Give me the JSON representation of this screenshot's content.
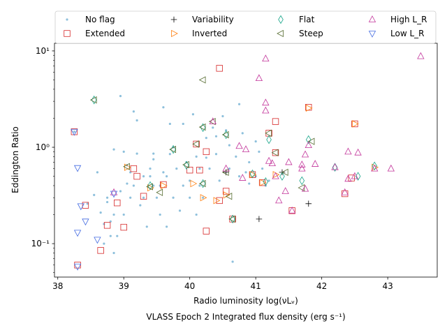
{
  "chart_data": {
    "type": "scatter",
    "xlabel": "Radio luminosity log(νLᵥ)",
    "xlabel_line2": "VLASS Epoch 2 Integrated flux density (erg s⁻¹)",
    "ylabel": "Eddington Ratio",
    "xlim": [
      37.95,
      43.75
    ],
    "ylim": [
      0.045,
      12
    ],
    "yscale": "log",
    "x_ticks": [
      38,
      39,
      40,
      41,
      42,
      43
    ],
    "x_tick_labels": [
      "38",
      "39",
      "40",
      "41",
      "42",
      "43"
    ],
    "y_ticks": [
      0.1,
      1,
      10
    ],
    "y_tick_labels": [
      "10⁻¹",
      "10⁰",
      "10¹"
    ],
    "legend_position": "top",
    "series": [
      {
        "name": "No flag",
        "marker": "dot",
        "color": "#8ec0dc",
        "points": [
          [
            38.25,
            1.45
          ],
          [
            38.45,
            0.26
          ],
          [
            38.6,
            0.55
          ],
          [
            38.65,
            0.21
          ],
          [
            38.7,
            0.16
          ],
          [
            38.7,
            0.1
          ],
          [
            38.75,
            0.27
          ],
          [
            38.8,
            0.17
          ],
          [
            38.8,
            0.12
          ],
          [
            38.85,
            0.08
          ],
          [
            38.85,
            0.2
          ],
          [
            38.9,
            0.12
          ],
          [
            38.85,
            0.95
          ],
          [
            38.95,
            3.4
          ],
          [
            39.0,
            0.9
          ],
          [
            39.05,
            0.65
          ],
          [
            39.1,
            0.55
          ],
          [
            39.1,
            0.3
          ],
          [
            39.15,
            0.4
          ],
          [
            39.15,
            2.35
          ],
          [
            39.2,
            1.9
          ],
          [
            39.25,
            0.25
          ],
          [
            39.3,
            0.3
          ],
          [
            39.3,
            0.5
          ],
          [
            39.35,
            0.15
          ],
          [
            39.4,
            0.5
          ],
          [
            39.4,
            0.6
          ],
          [
            39.45,
            0.75
          ],
          [
            39.45,
            0.4
          ],
          [
            39.5,
            0.3
          ],
          [
            39.55,
            0.2
          ],
          [
            39.6,
            0.55
          ],
          [
            39.6,
            2.6
          ],
          [
            39.65,
            0.15
          ],
          [
            39.7,
            0.85
          ],
          [
            39.7,
            1.75
          ],
          [
            39.75,
            0.3
          ],
          [
            39.8,
            0.6
          ],
          [
            39.85,
            0.22
          ],
          [
            39.9,
            0.4
          ],
          [
            39.9,
            1.75
          ],
          [
            39.95,
            0.7
          ],
          [
            40.0,
            0.45
          ],
          [
            40.0,
            0.3
          ],
          [
            40.05,
            2.2
          ],
          [
            40.1,
            0.2
          ],
          [
            40.1,
            0.8
          ],
          [
            40.15,
            0.4
          ],
          [
            40.2,
            0.3
          ],
          [
            40.25,
            1.25
          ],
          [
            40.3,
            0.6
          ],
          [
            40.35,
            1.6
          ],
          [
            40.4,
            1.3
          ],
          [
            40.4,
            0.85
          ],
          [
            40.45,
            0.45
          ],
          [
            40.5,
            2.1
          ],
          [
            40.55,
            1.5
          ],
          [
            40.6,
            0.6
          ],
          [
            40.65,
            0.065
          ],
          [
            40.7,
            0.8
          ],
          [
            40.75,
            2.8
          ],
          [
            40.8,
            1.4
          ],
          [
            40.85,
            0.55
          ],
          [
            40.9,
            0.7
          ],
          [
            41.0,
            1.15
          ],
          [
            41.0,
            0.5
          ],
          [
            41.05,
            0.9
          ],
          [
            41.1,
            0.6
          ],
          [
            41.15,
            0.4
          ],
          [
            41.2,
            0.45
          ],
          [
            39.05,
            0.42
          ],
          [
            39.55,
            0.4
          ],
          [
            38.95,
            0.35
          ],
          [
            39.2,
            0.86
          ],
          [
            39.45,
            0.86
          ],
          [
            39.75,
            1.0
          ],
          [
            40.25,
            0.78
          ],
          [
            40.6,
            1.05
          ],
          [
            40.9,
            0.42
          ],
          [
            40.75,
            0.5
          ],
          [
            38.75,
            0.3
          ],
          [
            38.55,
            0.32
          ],
          [
            39.0,
            0.2
          ],
          [
            39.65,
            0.5
          ],
          [
            40.15,
            0.6
          ]
        ]
      },
      {
        "name": "Extended",
        "marker": "square",
        "color": "#d62728",
        "points": [
          [
            38.25,
            1.45
          ],
          [
            38.3,
            0.06
          ],
          [
            38.42,
            0.25
          ],
          [
            38.65,
            0.085
          ],
          [
            38.75,
            0.155
          ],
          [
            38.9,
            0.265
          ],
          [
            39.0,
            0.148
          ],
          [
            39.15,
            0.6
          ],
          [
            39.2,
            0.5
          ],
          [
            39.3,
            0.31
          ],
          [
            39.6,
            0.41
          ],
          [
            40.0,
            0.58
          ],
          [
            40.15,
            0.58
          ],
          [
            40.1,
            1.08
          ],
          [
            40.25,
            0.9
          ],
          [
            40.25,
            0.135
          ],
          [
            40.45,
            0.28
          ],
          [
            40.45,
            6.6
          ],
          [
            40.55,
            0.35
          ],
          [
            40.65,
            0.18
          ],
          [
            40.95,
            0.52
          ],
          [
            41.1,
            0.43
          ],
          [
            41.2,
            1.4
          ],
          [
            41.3,
            1.85
          ],
          [
            41.3,
            0.88
          ],
          [
            41.55,
            0.22
          ],
          [
            41.8,
            2.6
          ],
          [
            42.35,
            0.33
          ],
          [
            42.45,
            0.48
          ],
          [
            42.5,
            1.75
          ]
        ]
      },
      {
        "name": "Variability",
        "marker": "plus",
        "color": "#000000",
        "points": [
          [
            41.05,
            0.18
          ],
          [
            41.8,
            0.26
          ],
          [
            40.55,
            0.55
          ],
          [
            41.4,
            0.55
          ]
        ]
      },
      {
        "name": "Inverted",
        "marker": "tri-right",
        "color": "#ff7f0e",
        "points": [
          [
            39.05,
            0.62
          ],
          [
            39.4,
            0.38
          ],
          [
            39.6,
            0.4
          ],
          [
            40.05,
            0.42
          ],
          [
            40.2,
            0.3
          ],
          [
            40.4,
            0.28
          ],
          [
            40.55,
            0.32
          ],
          [
            40.95,
            0.52
          ],
          [
            41.1,
            0.43
          ],
          [
            41.3,
            0.52
          ],
          [
            41.8,
            2.55
          ],
          [
            42.5,
            1.75
          ],
          [
            42.8,
            0.62
          ]
        ]
      },
      {
        "name": "Flat",
        "marker": "diamond",
        "color": "#17a589",
        "points": [
          [
            38.55,
            3.1
          ],
          [
            39.4,
            0.4
          ],
          [
            39.75,
            0.95
          ],
          [
            39.95,
            0.65
          ],
          [
            40.2,
            0.42
          ],
          [
            40.2,
            1.6
          ],
          [
            40.55,
            1.35
          ],
          [
            40.65,
            0.18
          ],
          [
            40.95,
            0.53
          ],
          [
            41.15,
            0.44
          ],
          [
            41.2,
            1.2
          ],
          [
            41.4,
            0.5
          ],
          [
            41.7,
            0.45
          ],
          [
            41.8,
            1.2
          ],
          [
            42.2,
            0.62
          ],
          [
            42.55,
            0.5
          ],
          [
            42.8,
            0.64
          ]
        ]
      },
      {
        "name": "Steep",
        "marker": "tri-left",
        "color": "#556b2f",
        "points": [
          [
            38.55,
            3.1
          ],
          [
            39.05,
            0.63
          ],
          [
            39.4,
            0.39
          ],
          [
            39.55,
            0.34
          ],
          [
            39.75,
            0.95
          ],
          [
            39.95,
            0.66
          ],
          [
            40.1,
            1.08
          ],
          [
            40.2,
            5.0
          ],
          [
            40.2,
            1.62
          ],
          [
            40.2,
            0.42
          ],
          [
            40.35,
            1.85
          ],
          [
            40.55,
            1.35
          ],
          [
            40.55,
            0.55
          ],
          [
            40.6,
            0.31
          ],
          [
            40.65,
            0.18
          ],
          [
            41.2,
            1.4
          ],
          [
            41.3,
            0.88
          ],
          [
            41.45,
            0.55
          ],
          [
            41.7,
            0.38
          ],
          [
            41.85,
            1.15
          ]
        ]
      },
      {
        "name": "High L_R",
        "marker": "tri-up",
        "color": "#c2339a",
        "points": [
          [
            38.85,
            0.34
          ],
          [
            40.35,
            1.85
          ],
          [
            40.55,
            0.6
          ],
          [
            40.75,
            1.03
          ],
          [
            40.8,
            0.48
          ],
          [
            40.85,
            0.95
          ],
          [
            41.05,
            5.2
          ],
          [
            41.15,
            8.3
          ],
          [
            41.15,
            2.9
          ],
          [
            41.15,
            2.4
          ],
          [
            41.2,
            0.72
          ],
          [
            41.25,
            0.68
          ],
          [
            41.3,
            0.5
          ],
          [
            41.35,
            0.28
          ],
          [
            41.45,
            0.35
          ],
          [
            41.5,
            0.7
          ],
          [
            41.55,
            0.22
          ],
          [
            41.7,
            0.6
          ],
          [
            41.7,
            0.66
          ],
          [
            41.75,
            0.37
          ],
          [
            41.75,
            0.84
          ],
          [
            41.8,
            1.05
          ],
          [
            41.9,
            0.67
          ],
          [
            42.2,
            0.62
          ],
          [
            42.35,
            0.34
          ],
          [
            42.4,
            0.9
          ],
          [
            42.4,
            0.47
          ],
          [
            42.5,
            0.5
          ],
          [
            42.55,
            0.88
          ],
          [
            42.8,
            0.6
          ],
          [
            43.05,
            0.6
          ],
          [
            43.5,
            8.8
          ]
        ]
      },
      {
        "name": "Low L_R",
        "marker": "tri-down",
        "color": "#4169e1",
        "points": [
          [
            38.25,
            1.45
          ],
          [
            38.3,
            0.61
          ],
          [
            38.3,
            0.13
          ],
          [
            38.3,
            0.058
          ],
          [
            38.35,
            0.245
          ],
          [
            38.42,
            0.17
          ],
          [
            38.6,
            0.11
          ],
          [
            38.85,
            0.33
          ]
        ]
      }
    ],
    "legend_order": [
      "No flag",
      "Extended",
      "Variability",
      "Inverted",
      "Flat",
      "Steep",
      "High L_R",
      "Low L_R"
    ]
  }
}
